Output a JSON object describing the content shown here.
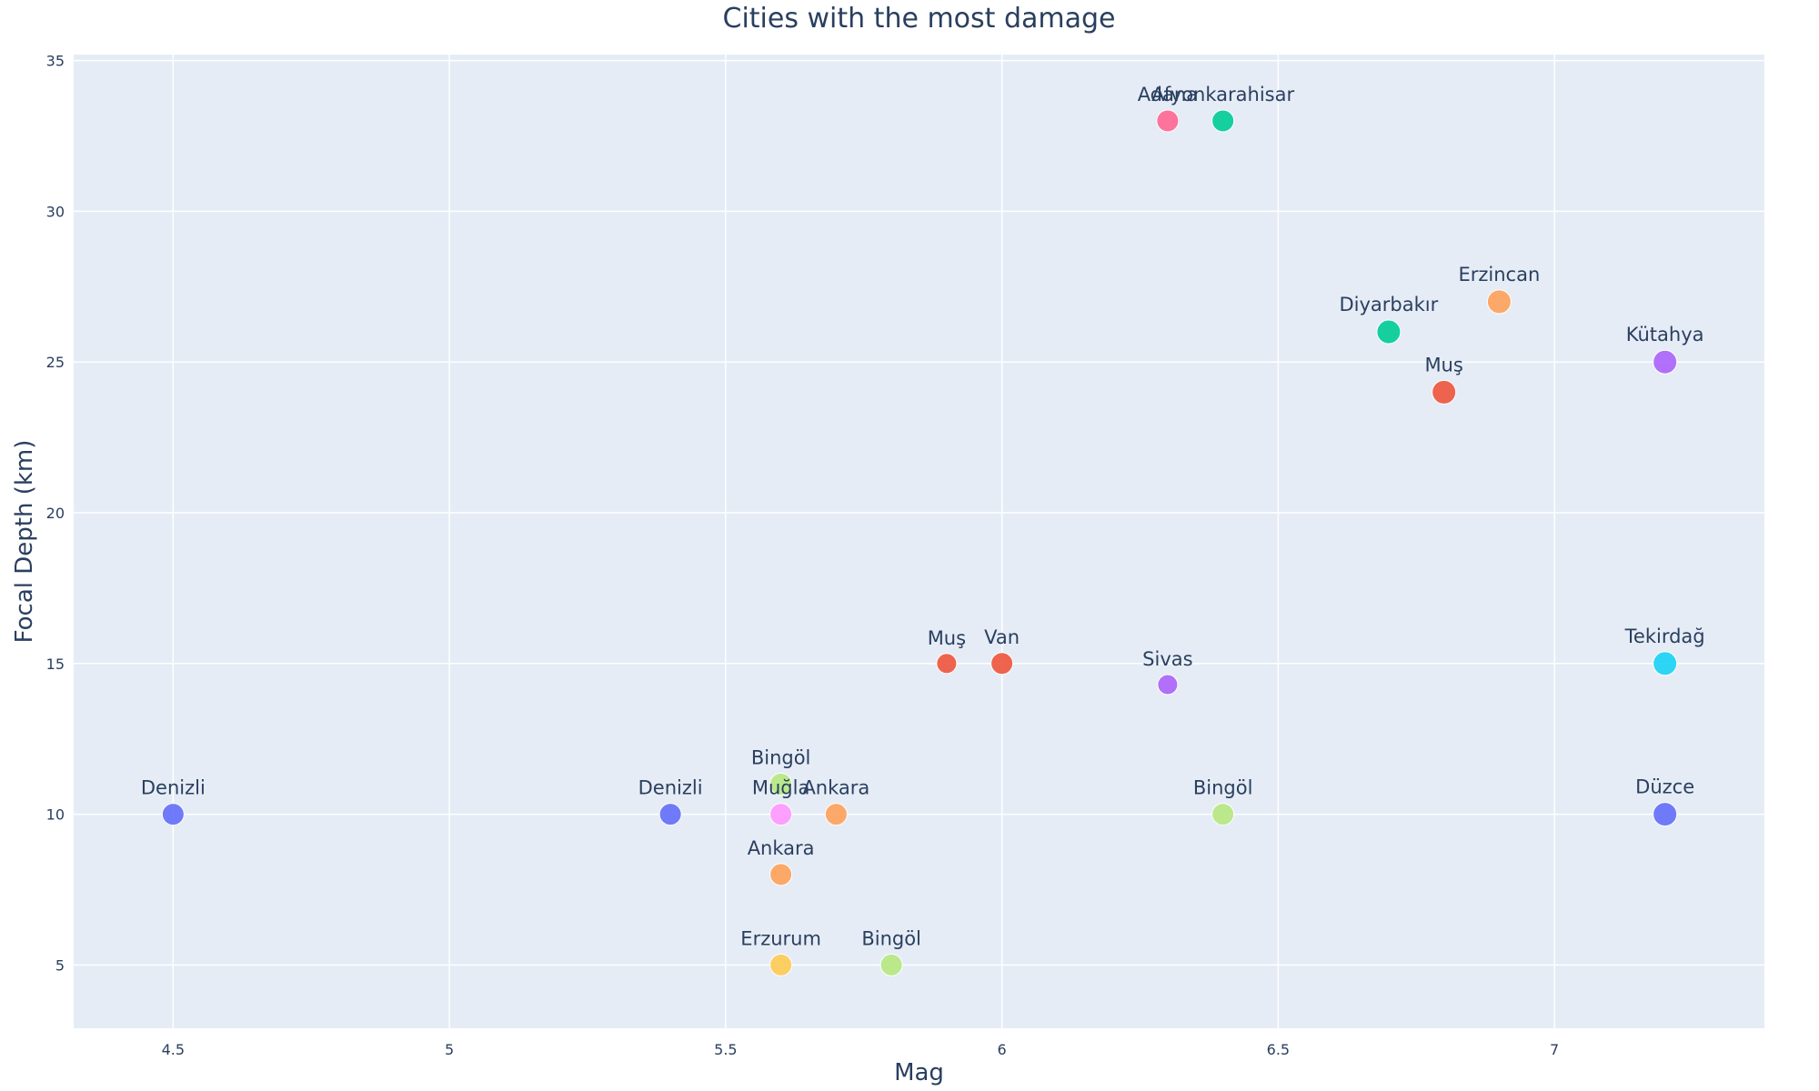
{
  "chart_data": {
    "type": "scatter",
    "title": "Cities with the most damage",
    "xlabel": "Mag",
    "ylabel": "Focal Depth (km)",
    "xlim": [
      4.32,
      7.38
    ],
    "ylim": [
      2.9,
      35.2
    ],
    "xticks": [
      4.5,
      5,
      5.5,
      6,
      6.5,
      7
    ],
    "xtick_labels": [
      "4.5",
      "5",
      "5.5",
      "6",
      "6.5",
      "7"
    ],
    "yticks": [
      5,
      10,
      15,
      20,
      25,
      30,
      35
    ],
    "ytick_labels": [
      "5",
      "10",
      "15",
      "20",
      "25",
      "30",
      "35"
    ],
    "grid": true,
    "legend": "none",
    "points": [
      {
        "label": "Denizli",
        "x": 4.5,
        "y": 10,
        "size": 12,
        "color": "#636efa"
      },
      {
        "label": "Denizli",
        "x": 5.4,
        "y": 10,
        "size": 12,
        "color": "#636efa"
      },
      {
        "label": "Bingöl",
        "x": 5.6,
        "y": 11,
        "size": 12,
        "color": "#b6e880"
      },
      {
        "label": "Muğla",
        "x": 5.6,
        "y": 10,
        "size": 12,
        "color": "#ff97ff"
      },
      {
        "label": "Ankara",
        "x": 5.7,
        "y": 10,
        "size": 12,
        "color": "#ffa15a"
      },
      {
        "label": "Ankara",
        "x": 5.6,
        "y": 8,
        "size": 12,
        "color": "#ffa15a"
      },
      {
        "label": "Erzurum",
        "x": 5.6,
        "y": 5,
        "size": 12,
        "color": "#fecb52"
      },
      {
        "label": "Bingöl",
        "x": 5.8,
        "y": 5,
        "size": 12,
        "color": "#b6e880"
      },
      {
        "label": "Muş",
        "x": 5.9,
        "y": 15,
        "size": 11,
        "color": "#ef553b"
      },
      {
        "label": "Van",
        "x": 6.0,
        "y": 15,
        "size": 12,
        "color": "#ef553b"
      },
      {
        "label": "Sivas",
        "x": 6.3,
        "y": 14.3,
        "size": 11,
        "color": "#ab63fa"
      },
      {
        "label": "Bingöl",
        "x": 6.4,
        "y": 10,
        "size": 12,
        "color": "#b6e880"
      },
      {
        "label": "Adana",
        "x": 6.3,
        "y": 33,
        "size": 12,
        "color": "#ff6692"
      },
      {
        "label": "Afyonkarahisar",
        "x": 6.4,
        "y": 33,
        "size": 12,
        "color": "#00cc96"
      },
      {
        "label": "Diyarbakır",
        "x": 6.7,
        "y": 26,
        "size": 13,
        "color": "#00cc96"
      },
      {
        "label": "Muş",
        "x": 6.8,
        "y": 24,
        "size": 13,
        "color": "#ef553b"
      },
      {
        "label": "Erzincan",
        "x": 6.9,
        "y": 27,
        "size": 13,
        "color": "#ffa15a"
      },
      {
        "label": "Kütahya",
        "x": 7.2,
        "y": 25,
        "size": 13,
        "color": "#ab63fa"
      },
      {
        "label": "Tekirdağ",
        "x": 7.2,
        "y": 15,
        "size": 13,
        "color": "#19d3f3"
      },
      {
        "label": "Düzce",
        "x": 7.2,
        "y": 10,
        "size": 13,
        "color": "#636efa"
      }
    ],
    "colors": {
      "plot_background": "#e5ecf6",
      "text": "#2a3f5f",
      "grid": "#ffffff"
    }
  }
}
